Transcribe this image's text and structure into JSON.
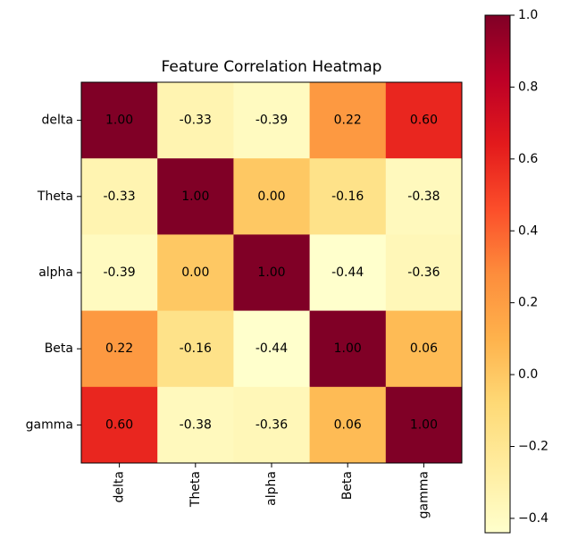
{
  "chart_data": {
    "type": "heatmap",
    "title": "Feature Correlation Heatmap",
    "categories": [
      "delta",
      "Theta",
      "alpha",
      "Beta",
      "gamma"
    ],
    "values": [
      [
        1.0,
        -0.33,
        -0.39,
        0.22,
        0.6
      ],
      [
        -0.33,
        1.0,
        0.0,
        -0.16,
        -0.38
      ],
      [
        -0.39,
        0.0,
        1.0,
        -0.44,
        -0.36
      ],
      [
        0.22,
        -0.16,
        -0.44,
        1.0,
        0.06
      ],
      [
        0.6,
        -0.38,
        -0.36,
        0.06,
        1.0
      ]
    ],
    "value_labels": [
      [
        "1.00",
        "-0.33",
        "-0.39",
        "0.22",
        "0.60"
      ],
      [
        "-0.33",
        "1.00",
        "0.00",
        "-0.16",
        "-0.38"
      ],
      [
        "-0.39",
        "0.00",
        "1.00",
        "-0.44",
        "-0.36"
      ],
      [
        "0.22",
        "-0.16",
        "-0.44",
        "1.00",
        "0.06"
      ],
      [
        "0.60",
        "-0.38",
        "-0.36",
        "0.06",
        "1.00"
      ]
    ],
    "colormap": "YlOrRd",
    "clim": [
      -0.44,
      1.0
    ],
    "cticks": [
      {
        "value": -0.4,
        "label": "−0.4"
      },
      {
        "value": -0.2,
        "label": "−0.2"
      },
      {
        "value": 0,
        "label": "0.0"
      },
      0.2,
      0.4,
      0.6,
      0.8,
      {
        "value": 1,
        "label": "1.0"
      }
    ]
  }
}
